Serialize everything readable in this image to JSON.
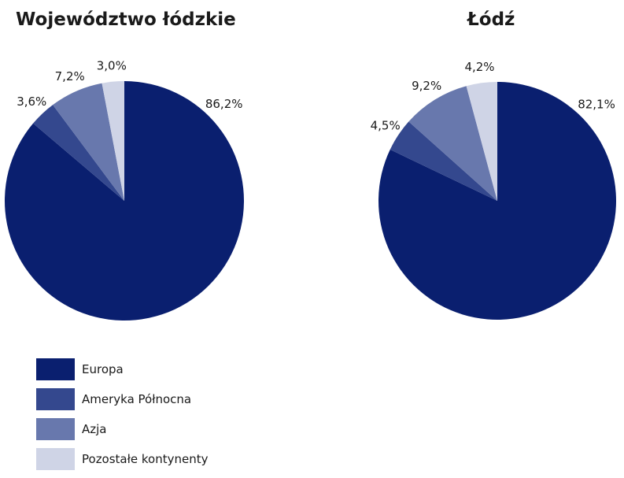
{
  "chart_data": [
    {
      "type": "pie",
      "title": "Województwo łódzkie",
      "categories": [
        "Europa",
        "Ameryka Północna",
        "Azja",
        "Pozostałe kontynenty"
      ],
      "values": [
        86.2,
        3.6,
        7.2,
        3.0
      ],
      "labels": [
        "86,2%",
        "3,6%",
        "7,2%",
        "3,0%"
      ],
      "legend": "bottom-left"
    },
    {
      "type": "pie",
      "title": "Łódź",
      "categories": [
        "Europa",
        "Ameryka Północna",
        "Azja",
        "Pozostałe kontynenty"
      ],
      "values": [
        82.1,
        4.5,
        9.2,
        4.2
      ],
      "labels": [
        "82,1%",
        "4,5%",
        "9,2%",
        "4,2%"
      ],
      "legend": "bottom-left"
    }
  ],
  "colors": [
    "#0a1f6f",
    "#34488e",
    "#6878ad",
    "#cfd4e6"
  ],
  "legend": {
    "items": [
      "Europa",
      "Ameryka Północna",
      "Azja",
      "Pozostałe kontynenty"
    ]
  }
}
